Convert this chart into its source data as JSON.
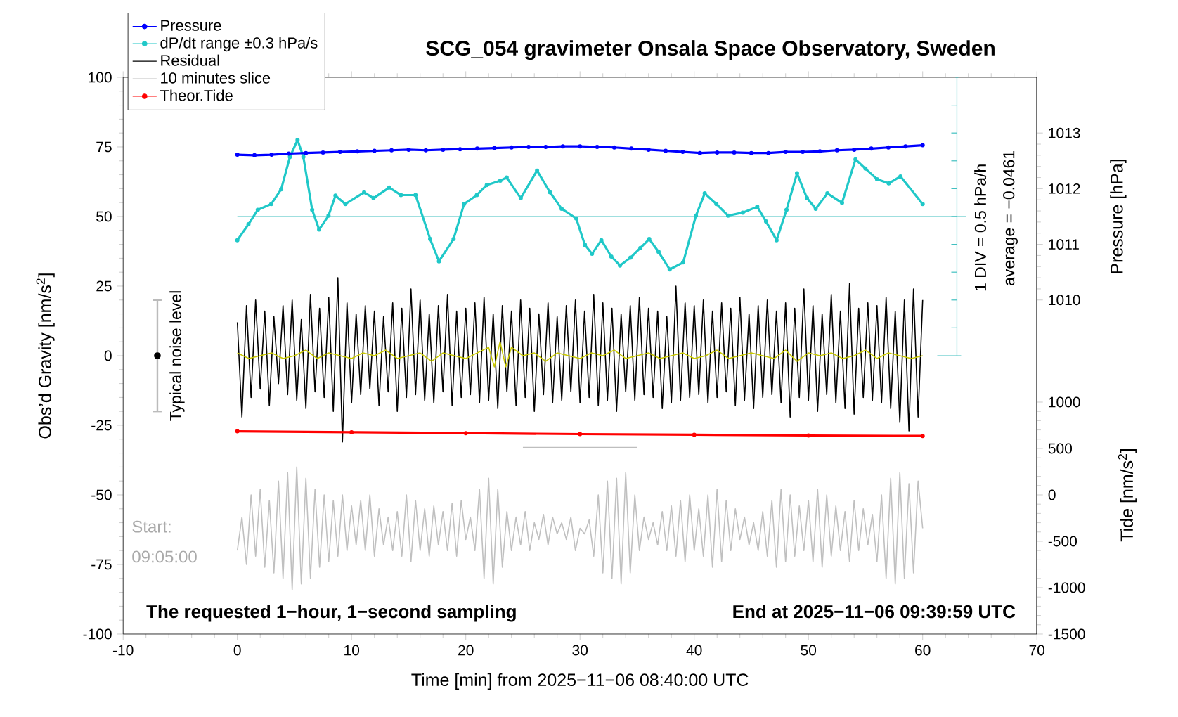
{
  "chart_data": {
    "type": "line",
    "title": "SCG_054 gravimeter Onsala Space Observatory, Sweden",
    "xlabel": "Time [min] from 2025−11−06 08:40:00 UTC",
    "ylabel": "Obs’d Gravity [nm/s$^{2}$]",
    "y2label": "Pressure [hPa]",
    "y3label": "Tide [nm/s$^{2}$]",
    "xlim": [
      -10,
      70
    ],
    "xticks": [
      -10,
      0,
      10,
      20,
      30,
      40,
      50,
      60,
      70
    ],
    "ylim": [
      -100,
      100
    ],
    "yticks": [
      -100,
      -75,
      -50,
      -25,
      0,
      25,
      50,
      75,
      100
    ],
    "y2lim": [
      1004,
      1014
    ],
    "y2ticks": [
      1010,
      1011,
      1012,
      1013
    ],
    "y3lim": [
      -1500,
      4500
    ],
    "y3ticks": [
      -1500,
      -1000,
      -500,
      0,
      500,
      1000
    ],
    "legend": "top left",
    "ref_lines": [
      {
        "axis": "y",
        "value": 50,
        "color": "#40c0c0"
      }
    ],
    "annotations": [
      "The requested 1−hour, 1−second sampling",
      "End at 2025−11−06 09:39:59 UTC",
      "Start:",
      "09:05:00",
      "Typical noise level",
      "1 DIV = 0.5 hPa/h",
      "average = −0.0461"
    ],
    "x": [
      0,
      0.4,
      0.8,
      1.2,
      1.6,
      2,
      2.4,
      2.8,
      3.2,
      3.6,
      4,
      4.4,
      4.8,
      5.2,
      5.6,
      6,
      6.4,
      6.8,
      7.2,
      7.6,
      8,
      8.4,
      8.8,
      9.2,
      9.6,
      10,
      10.4,
      10.8,
      11.2,
      11.6,
      12,
      12.4,
      12.8,
      13.2,
      13.6,
      14,
      14.4,
      14.8,
      15.2,
      15.6,
      16,
      16.4,
      16.8,
      17.2,
      17.6,
      18,
      18.4,
      18.8,
      19.2,
      19.6,
      20,
      20.4,
      20.8,
      21.2,
      21.6,
      22,
      22.4,
      22.8,
      23.2,
      23.6,
      24,
      24.4,
      24.8,
      25.2,
      25.6,
      26,
      26.4,
      26.8,
      27.2,
      27.6,
      28,
      28.4,
      28.8,
      29.2,
      29.6,
      30,
      30.4,
      30.8,
      31.2,
      31.6,
      32,
      32.4,
      32.8,
      33.2,
      33.6,
      34,
      34.4,
      34.8,
      35.2,
      35.6,
      36,
      36.4,
      36.8,
      37.2,
      37.6,
      38,
      38.4,
      38.8,
      39.2,
      39.6,
      40,
      40.4,
      40.8,
      41.2,
      41.6,
      42,
      42.4,
      42.8,
      43.2,
      43.6,
      44,
      44.4,
      44.8,
      45.2,
      45.6,
      46,
      46.4,
      46.8,
      47.2,
      47.6,
      48,
      48.4,
      48.8,
      49.2,
      49.6,
      50,
      50.4,
      50.8,
      51.2,
      51.6,
      52,
      52.4,
      52.8,
      53.2,
      53.6,
      54,
      54.4,
      54.8,
      55.2,
      55.6,
      56,
      56.4,
      56.8,
      57.2,
      57.6,
      58,
      58.4,
      58.8,
      59.2,
      59.6,
      60
    ],
    "series": [
      {
        "name": "Pressure",
        "axis": "y2",
        "color": "#0000ff",
        "marker": "circle",
        "x": [
          0,
          1.5,
          3,
          4.5,
          6,
          7.5,
          9,
          10.5,
          12,
          13.5,
          15,
          16.5,
          18,
          19.5,
          21,
          22.5,
          24,
          25.5,
          27,
          28.5,
          30,
          31.5,
          33,
          34.5,
          36,
          37.5,
          39,
          40.5,
          42,
          43.5,
          45,
          46.5,
          48,
          49.5,
          51,
          52.5,
          54,
          55.5,
          57,
          58.5,
          60
        ],
        "values": [
          1012.61,
          1012.6,
          1012.61,
          1012.63,
          1012.64,
          1012.65,
          1012.66,
          1012.67,
          1012.68,
          1012.69,
          1012.7,
          1012.69,
          1012.7,
          1012.71,
          1012.72,
          1012.73,
          1012.74,
          1012.75,
          1012.75,
          1012.76,
          1012.76,
          1012.75,
          1012.74,
          1012.72,
          1012.7,
          1012.68,
          1012.66,
          1012.64,
          1012.65,
          1012.65,
          1012.64,
          1012.64,
          1012.66,
          1012.66,
          1012.67,
          1012.69,
          1012.7,
          1012.72,
          1012.74,
          1012.76,
          1012.78
        ]
      },
      {
        "name": "dP/dt range ±0.3 hPa/s",
        "color": "#20c8c8",
        "marker": "circle",
        "x": [
          0,
          0.97,
          1.79,
          2.97,
          3.84,
          4.6,
          5.27,
          5.78,
          6.55,
          7.16,
          7.98,
          8.59,
          9.46,
          11.1,
          11.92,
          13.3,
          14.32,
          15.6,
          16.88,
          17.65,
          18.93,
          19.85,
          20.97,
          21.84,
          23.02,
          23.58,
          24.81,
          26.24,
          27.37,
          28.39,
          29.67,
          30.43,
          31.05,
          31.87,
          32.74,
          33.5,
          34.42,
          35.29,
          36.06,
          36.88,
          37.85,
          39.03,
          40.15,
          40.92,
          41.94,
          42.97,
          44.25,
          45.52,
          46.29,
          47.21,
          48.08,
          49,
          49.87,
          50.64,
          51.66,
          52.94,
          54.12,
          54.99,
          56.01,
          57.03,
          58.06,
          60
        ],
        "values": [
          41.5,
          47.2,
          52.4,
          54.5,
          59.8,
          71.4,
          77.5,
          71.4,
          52.4,
          45.3,
          50.3,
          57.5,
          54.5,
          58.7,
          56.6,
          60.4,
          57.7,
          57.7,
          41.9,
          33.9,
          41.9,
          54.5,
          57.7,
          61.3,
          62.9,
          64,
          56.6,
          66.5,
          58.7,
          52.8,
          49.3,
          39.8,
          36.6,
          41.5,
          35.6,
          32.4,
          35.2,
          38.7,
          41.9,
          37.3,
          31,
          33.5,
          50.3,
          58.3,
          54.5,
          50.3,
          51.4,
          53.5,
          48.2,
          41.5,
          52.4,
          65.5,
          56.6,
          52.8,
          58.3,
          54.9,
          70.5,
          67.2,
          63.4,
          61.9,
          64.4,
          54.5
        ]
      },
      {
        "name": "Residual",
        "color": "#000000",
        "values": [
          12,
          -22,
          18,
          -15,
          20,
          -12,
          16,
          -18,
          14,
          -10,
          18,
          -14,
          20,
          -16,
          13,
          -19,
          22,
          -13,
          17,
          -15,
          21,
          -20,
          28,
          -31,
          19,
          -17,
          15,
          -14,
          18,
          -12,
          16,
          -18,
          14,
          -13,
          19,
          -20,
          17,
          -15,
          24,
          -14,
          20,
          -16,
          15,
          -17,
          18,
          -13,
          22,
          -18,
          16,
          -15,
          17,
          -14,
          19,
          -17,
          21,
          -16,
          15,
          -19,
          18,
          -13,
          16,
          -18,
          20,
          -15,
          17,
          -20,
          15,
          -14,
          19,
          -17,
          14,
          -16,
          18,
          -13,
          20,
          -17,
          16,
          -15,
          22,
          -18,
          19,
          -16,
          17,
          -20,
          15,
          -13,
          18,
          -16,
          21,
          -14,
          17,
          -15,
          16,
          -19,
          14,
          -17,
          25,
          -16,
          19,
          -15,
          18,
          -14,
          20,
          -17,
          16,
          -15,
          19,
          -13,
          17,
          -18,
          21,
          -16,
          15,
          -19,
          18,
          -15,
          20,
          -14,
          16,
          -17,
          19,
          -22,
          17,
          -15,
          24,
          -16,
          18,
          -20,
          15,
          -14,
          22,
          -17,
          16,
          -19,
          26,
          -21,
          17,
          -15,
          19,
          -16,
          18,
          -17,
          21,
          -19,
          16,
          -24,
          20,
          -27,
          24,
          -22,
          20
        ]
      },
      {
        "name": "10 minutes slice",
        "color": "#c0c0c0",
        "values": [
          -70,
          -58,
          -75,
          -50,
          -72,
          -48,
          -76,
          -52,
          -78,
          -45,
          -80,
          -42,
          -84,
          -40,
          -82,
          -44,
          -80,
          -48,
          -76,
          -50,
          -74,
          -52,
          -72,
          -50,
          -70,
          -54,
          -68,
          -52,
          -70,
          -50,
          -72,
          -55,
          -68,
          -58,
          -70,
          -56,
          -72,
          -50,
          -74,
          -52,
          -70,
          -55,
          -72,
          -54,
          -68,
          -56,
          -70,
          -53,
          -72,
          -52,
          -66,
          -58,
          -70,
          -48,
          -80,
          -44,
          -82,
          -48,
          -76,
          -56,
          -70,
          -58,
          -68,
          -56,
          -70,
          -60,
          -66,
          -57,
          -68,
          -58,
          -64,
          -60,
          -66,
          -58,
          -70,
          -62,
          -64,
          -59,
          -72,
          -50,
          -78,
          -45,
          -80,
          -44,
          -82,
          -42,
          -78,
          -50,
          -70,
          -58,
          -66,
          -60,
          -68,
          -56,
          -70,
          -54,
          -72,
          -52,
          -74,
          -50,
          -70,
          -55,
          -72,
          -50,
          -76,
          -48,
          -74,
          -52,
          -70,
          -55,
          -66,
          -58,
          -68,
          -60,
          -70,
          -56,
          -72,
          -52,
          -76,
          -48,
          -74,
          -50,
          -72,
          -54,
          -70,
          -52,
          -74,
          -48,
          -76,
          -50,
          -72,
          -54,
          -70,
          -56,
          -74,
          -52,
          -70,
          -55,
          -68,
          -57,
          -74,
          -50,
          -80,
          -44,
          -82,
          -42,
          -80,
          -46,
          -78,
          -45,
          -62
        ]
      },
      {
        "name": "Theor.Tide",
        "axis": "y3",
        "color": "#ff0000",
        "marker": "circle",
        "x": [
          0,
          10,
          20,
          30,
          40,
          50,
          60
        ],
        "values": [
          685,
          675,
          665,
          655,
          648,
          640,
          635
        ]
      },
      {
        "color": "#c8c800",
        "x": [
          0,
          1,
          2,
          3,
          4,
          5,
          6,
          7,
          8,
          9,
          10,
          11,
          12,
          13,
          14,
          15,
          16,
          17,
          18,
          19,
          20,
          21,
          22,
          22.5,
          23,
          23.5,
          24,
          25,
          26,
          27,
          28,
          29,
          30,
          31,
          32,
          33,
          34,
          35,
          36,
          37,
          38,
          39,
          40,
          41,
          42,
          43,
          44,
          45,
          46,
          47,
          48,
          49,
          50,
          51,
          52,
          53,
          54,
          55,
          56,
          57,
          58,
          59,
          60
        ],
        "values": [
          1,
          -1,
          0,
          1,
          -1,
          0,
          2,
          -1,
          1,
          0,
          -1,
          1,
          0,
          2,
          -1,
          0,
          1,
          -2,
          1,
          0,
          -1,
          1,
          3,
          -4,
          5,
          -4,
          3,
          0,
          1,
          -2,
          1,
          0,
          -1,
          1,
          0,
          2,
          -1,
          0,
          1,
          -1,
          0,
          1,
          -1,
          0,
          2,
          -1,
          0,
          1,
          0,
          -1,
          2,
          -2,
          1,
          0,
          1,
          -1,
          0,
          2,
          -1,
          1,
          0,
          -1,
          0
        ]
      },
      {
        "color": "#bebebe",
        "x": [
          25,
          35
        ],
        "values": [
          -33,
          -33
        ]
      },
      {
        "type": "scatter",
        "color": "#000000",
        "x": [
          -7
        ],
        "values": [
          0
        ],
        "errors": [
          20
        ]
      }
    ]
  }
}
